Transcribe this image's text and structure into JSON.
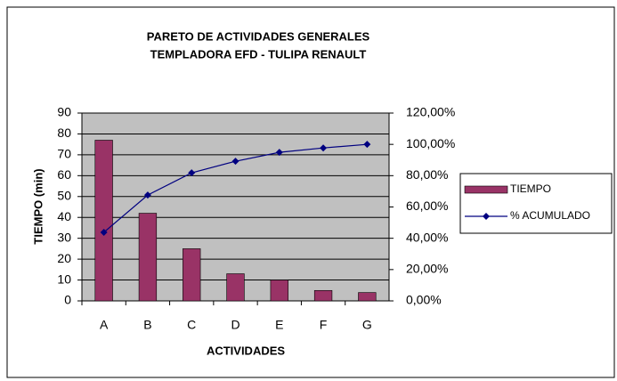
{
  "chart_data": {
    "type": "pareto",
    "title": "PARETO DE ACTIVIDADES  GENERALES",
    "subtitle": "TEMPLADORA   EFD - TULIPA  RENAULT",
    "x_label": "ACTIVIDADES",
    "y_label": "TIEMPO (min)",
    "categories": [
      "A",
      "B",
      "C",
      "D",
      "E",
      "F",
      "G"
    ],
    "series": [
      {
        "name": "TIEMPO",
        "type": "bar",
        "color": "#993366",
        "values": [
          77,
          42,
          25,
          13,
          10,
          5,
          4
        ]
      },
      {
        "name": "% ACUMULADO",
        "type": "line",
        "axis": "y2",
        "color": "#000080",
        "values": [
          43.8,
          67.6,
          81.8,
          89.2,
          94.9,
          97.7,
          100
        ]
      }
    ],
    "ylim": [
      0,
      90
    ],
    "yticks": [
      0,
      10,
      20,
      30,
      40,
      50,
      60,
      70,
      80,
      90
    ],
    "y2lim": [
      0,
      120
    ],
    "y2ticks": [
      {
        "value": 0,
        "label": "0,00%"
      },
      {
        "value": 20,
        "label": "20,00%"
      },
      {
        "value": 40,
        "label": "40,00%"
      },
      {
        "value": 60,
        "label": "60,00%"
      },
      {
        "value": 80,
        "label": "80,00%"
      },
      {
        "value": 100,
        "label": "100,00%"
      },
      {
        "value": 120,
        "label": "120,00%"
      }
    ],
    "grid": true,
    "legend": "right",
    "plot_background": "#c0c0c0"
  }
}
